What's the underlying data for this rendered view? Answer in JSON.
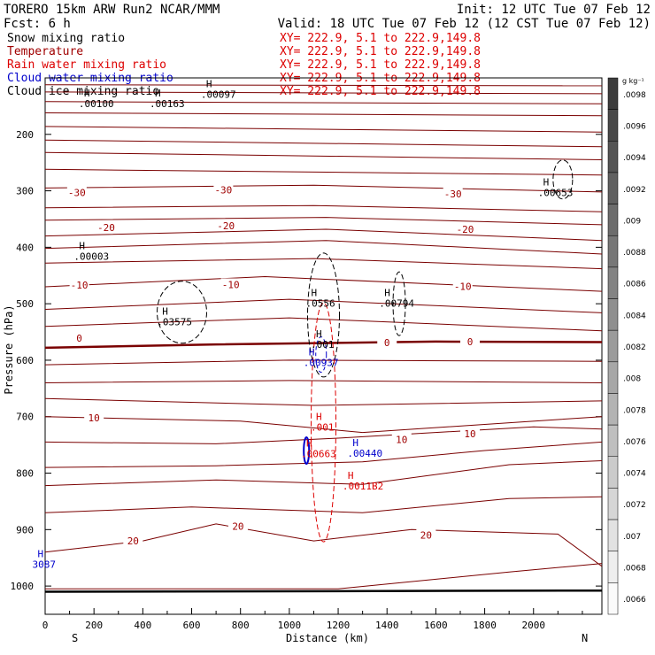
{
  "header": {
    "line1_left": "TORERO  15km ARW   Run2    NCAR/MMM",
    "line1_right": "Init: 12 UTC Tue 07 Feb 12",
    "line2_left": "Fcst:     6 h",
    "line2_right": "Valid: 18 UTC Tue 07 Feb 12 (12 CST Tue 07 Feb 12)"
  },
  "legend": [
    {
      "name": "Snow mixing ratio",
      "color": "#000000",
      "xy": "XY= 222.9,  5.1 to 222.9,149.8"
    },
    {
      "name": "Temperature",
      "color": "#a00000",
      "xy": "XY= 222.9,  5.1 to 222.9,149.8"
    },
    {
      "name": "Rain water mixing ratio",
      "color": "#dd0000",
      "xy": "XY= 222.9,  5.1 to 222.9,149.8"
    },
    {
      "name": "Cloud water mixing ratio",
      "color": "#0000cc",
      "xy": "XY= 222.9,  5.1 to 222.9,149.8"
    },
    {
      "name": "Cloud ice mixing ratio",
      "color": "#000000",
      "xy": "XY= 222.9,  5.1 to 222.9,149.8"
    }
  ],
  "chart_data": {
    "type": "contour",
    "xlabel": "Distance (km)",
    "ylabel": "Pressure (hPa)",
    "xlim": [
      0,
      2280
    ],
    "ylim": [
      1050,
      100
    ],
    "x_ticks": [
      0,
      200,
      400,
      600,
      800,
      1000,
      1200,
      1400,
      1600,
      1800,
      2000
    ],
    "y_ticks": [
      200,
      300,
      400,
      500,
      600,
      700,
      800,
      900,
      1000
    ],
    "y_tick_labels": [
      "200",
      "300",
      "400",
      "500",
      "600",
      "700",
      "800",
      "900",
      "1000"
    ],
    "x_end_labels": {
      "left": "S",
      "right": "N"
    },
    "temperature_contour_labels": [
      {
        "value": "-30",
        "x": 130,
        "p": 303
      },
      {
        "value": "-30",
        "x": 730,
        "p": 298
      },
      {
        "value": "-30",
        "x": 1670,
        "p": 305
      },
      {
        "value": "-20",
        "x": 250,
        "p": 365
      },
      {
        "value": "-20",
        "x": 740,
        "p": 362
      },
      {
        "value": "-20",
        "x": 1720,
        "p": 368
      },
      {
        "value": "-10",
        "x": 140,
        "p": 467
      },
      {
        "value": "-10",
        "x": 760,
        "p": 466
      },
      {
        "value": "-10",
        "x": 1710,
        "p": 469
      },
      {
        "value": "0",
        "x": 140,
        "p": 561
      },
      {
        "value": "0",
        "x": 1400,
        "p": 569
      },
      {
        "value": "0",
        "x": 1740,
        "p": 567
      },
      {
        "value": "10",
        "x": 200,
        "p": 702
      },
      {
        "value": "10",
        "x": 1460,
        "p": 740
      },
      {
        "value": "10",
        "x": 1740,
        "p": 730
      },
      {
        "value": "20",
        "x": 360,
        "p": 920
      },
      {
        "value": "20",
        "x": 790,
        "p": 894
      },
      {
        "value": "20",
        "x": 1560,
        "p": 910
      }
    ],
    "snow_maxima": [
      {
        "label": ".00100",
        "x": 210,
        "p": 152
      },
      {
        "label": ".00163",
        "x": 500,
        "p": 152
      },
      {
        "label": ".00097",
        "x": 710,
        "p": 135
      },
      {
        "label": ".00003",
        "x": 190,
        "p": 422
      },
      {
        "label": ".03575",
        "x": 530,
        "p": 538
      },
      {
        "label": ".0556",
        "x": 1140,
        "p": 505
      },
      {
        "label": ".00794",
        "x": 1440,
        "p": 505
      },
      {
        "label": ".00653",
        "x": 2090,
        "p": 309
      },
      {
        "label": ".001",
        "x": 1160,
        "p": 578
      }
    ],
    "cloud_water_maxima": [
      {
        "label": ".00937",
        "x": 1130,
        "p": 610
      },
      {
        "label": ".00440",
        "x": 1310,
        "p": 771
      },
      {
        "label": "3087",
        "x": 20,
        "p": 968
      }
    ],
    "rain_water_maxima": [
      {
        "label": ".001",
        "x": 1160,
        "p": 725
      },
      {
        "label": ".00663",
        "x": 1120,
        "p": 772
      },
      {
        "label": ".0011B2",
        "x": 1290,
        "p": 829
      }
    ],
    "colorbar": {
      "unit": "g kg⁻¹",
      "ticks": [
        ".0098",
        ".0096",
        ".0094",
        ".0092",
        ".009",
        ".0088",
        ".0086",
        ".0084",
        ".0082",
        ".008",
        ".0078",
        ".0076",
        ".0074",
        ".0072",
        ".007",
        ".0068",
        ".0066"
      ]
    }
  }
}
